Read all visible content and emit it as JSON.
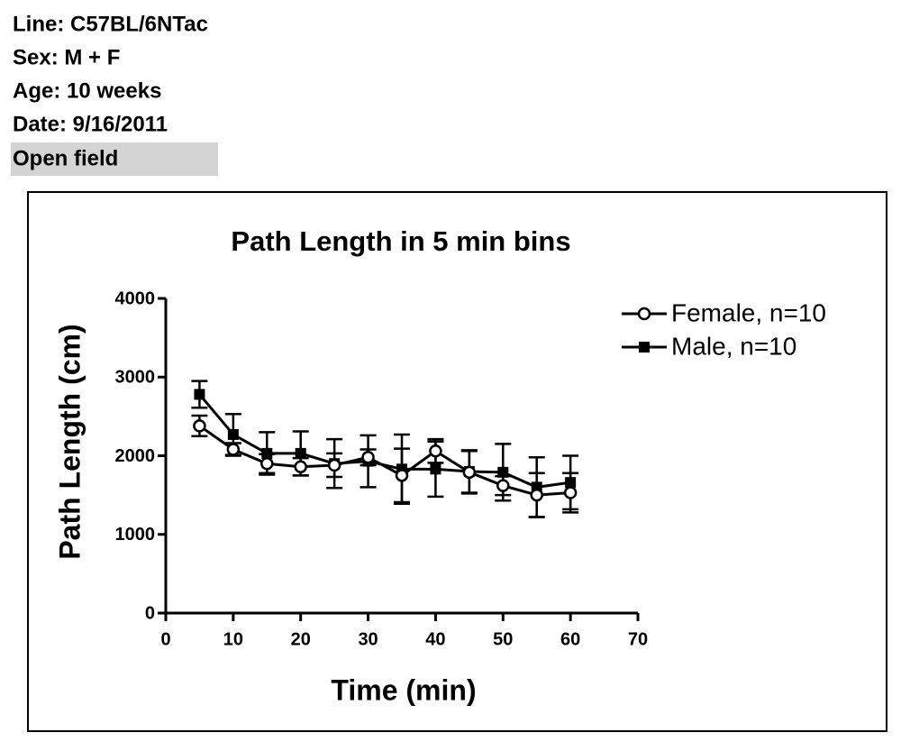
{
  "header": {
    "lines": [
      "Line: C57BL/6NTac",
      "Sex: M + F",
      "Age: 10 weeks",
      "Date: 9/16/2011",
      "Open field"
    ]
  },
  "chart_data": {
    "type": "line",
    "title": "Path Length in 5 min bins",
    "x_label": "Time (min)",
    "y_label": "Path Length (cm)",
    "x": [
      5,
      10,
      15,
      20,
      25,
      30,
      35,
      40,
      45,
      50,
      55,
      60
    ],
    "series": [
      {
        "name": "Male, n=10",
        "color": "#000000",
        "marker": "filled-square",
        "values": [
          2780,
          2270,
          2030,
          2030,
          1900,
          1930,
          1830,
          1830,
          1800,
          1790,
          1600,
          1660
        ],
        "errors": [
          170,
          260,
          270,
          280,
          310,
          330,
          440,
          350,
          270,
          360,
          380,
          340
        ]
      },
      {
        "name": "Female, n=10",
        "color": "#000000",
        "marker": "open-circle",
        "values": [
          2380,
          2080,
          1900,
          1860,
          1880,
          1980,
          1750,
          2060,
          1790,
          1620,
          1500,
          1530
        ],
        "errors": [
          130,
          80,
          120,
          110,
          150,
          100,
          340,
          150,
          270,
          120,
          280,
          250
        ]
      }
    ],
    "xlim": [
      0,
      70
    ],
    "xticks": [
      0,
      10,
      20,
      30,
      40,
      50,
      60,
      70
    ],
    "ylim": [
      0,
      4000
    ],
    "yticks": [
      0,
      1000,
      2000,
      3000,
      4000
    ],
    "legend": "upper-right"
  }
}
